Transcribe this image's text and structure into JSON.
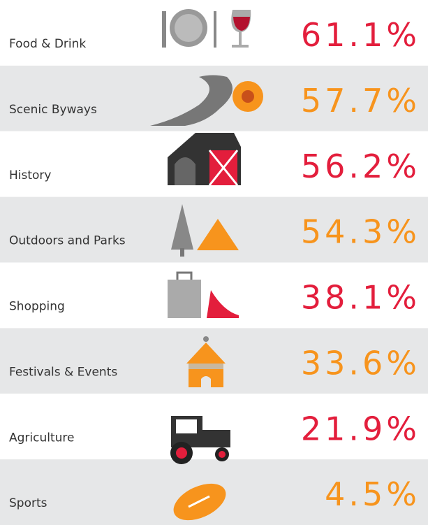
{
  "rows": [
    {
      "label": "Food & Drink",
      "value": "61.1%"
    },
    {
      "label": "Scenic Byways",
      "value": "57.7%"
    },
    {
      "label": "History",
      "value": "56.2%"
    },
    {
      "label": "Outdoors and Parks",
      "value": "54.3%"
    },
    {
      "label": "Shopping",
      "value": "38.1%"
    },
    {
      "label": "Festivals & Events",
      "value": "33.6%"
    },
    {
      "label": "Agriculture",
      "value": "21.9%"
    },
    {
      "label": "Sports",
      "value": "4.5%"
    }
  ]
}
